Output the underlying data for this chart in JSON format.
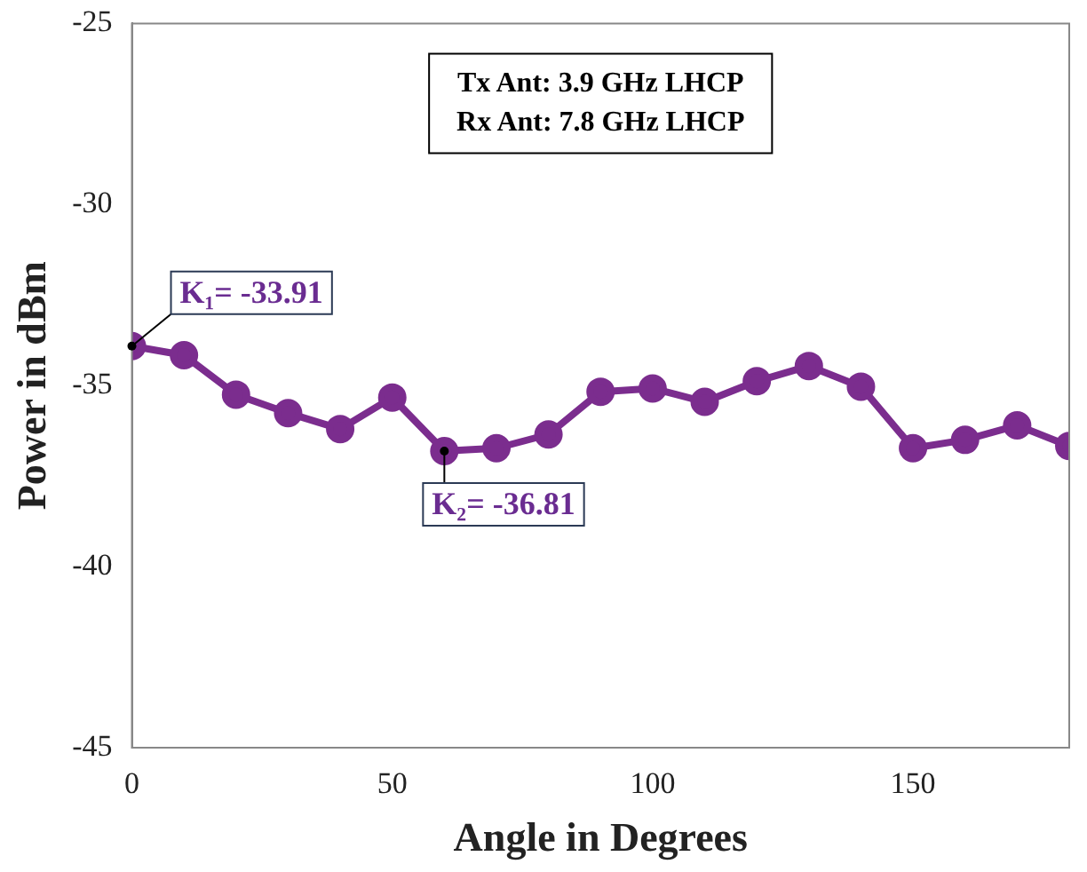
{
  "chart_data": {
    "type": "line",
    "xlabel": "Angle in Degrees",
    "ylabel": "Power in dBm",
    "x": [
      0,
      10,
      20,
      30,
      40,
      50,
      60,
      70,
      80,
      90,
      100,
      110,
      120,
      130,
      140,
      150,
      160,
      170,
      180
    ],
    "series": [
      {
        "color": "#7b2d8e",
        "values": [
          -33.91,
          -34.16,
          -35.25,
          -35.76,
          -36.2,
          -35.33,
          -36.81,
          -36.73,
          -36.35,
          -35.17,
          -35.08,
          -35.45,
          -34.88,
          -34.46,
          -35.03,
          -36.73,
          -36.5,
          -36.1,
          -36.67
        ]
      }
    ],
    "xlim": [
      0,
      180
    ],
    "xticks": [
      0,
      50,
      100,
      150
    ],
    "ylim": [
      -45,
      -25
    ],
    "yticks": [
      -45,
      -40,
      -35,
      -30,
      -25
    ],
    "grid": false,
    "legend": false,
    "marker": "circle",
    "line_style": "solid",
    "annotations": [
      "Tx Ant: 3.9 GHz LHCP",
      "Rx Ant: 7.8 GHz LHCP",
      {
        "text": "K₁= -33.91",
        "x": 0,
        "y": -33.91
      },
      {
        "text": "K₂= -36.81",
        "x": 60,
        "y": -36.81
      }
    ]
  }
}
